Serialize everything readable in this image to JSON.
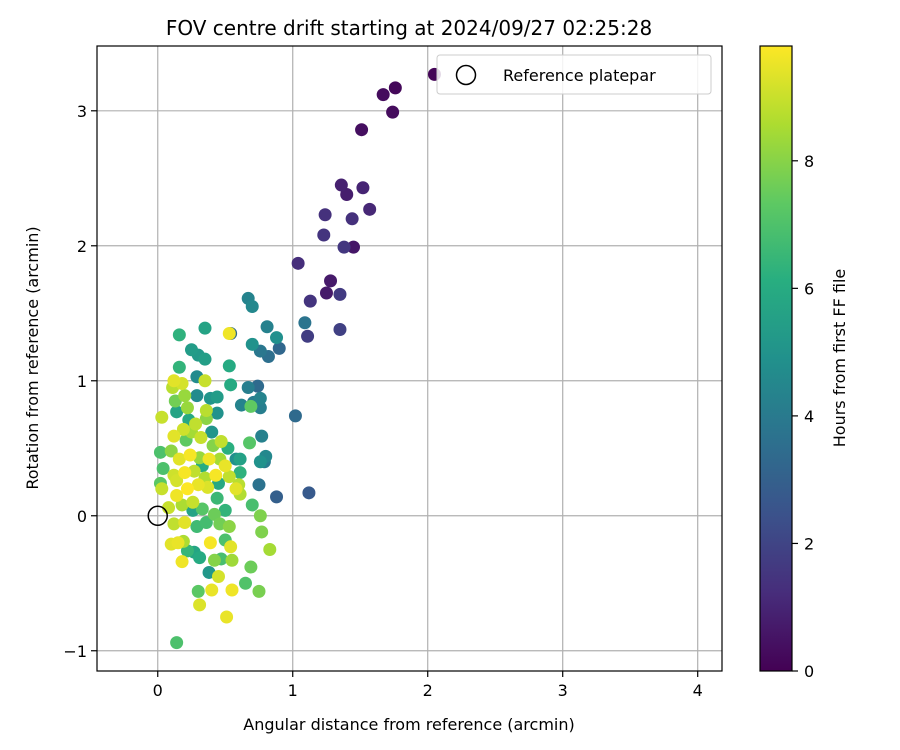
{
  "chart_data": {
    "type": "scatter",
    "title": "FOV centre drift starting at 2024/09/27 02:25:28",
    "xlabel": "Angular distance from reference (arcmin)",
    "ylabel": "Rotation from reference (arcmin)",
    "xlim": [
      -0.45,
      4.18
    ],
    "ylim": [
      -1.15,
      3.48
    ],
    "xticks": [
      0,
      1,
      2,
      3,
      4
    ],
    "yticks": [
      -1,
      0,
      1,
      2,
      3
    ],
    "grid": true,
    "legend": {
      "placement": "top-right",
      "entries": [
        "Reference platepar"
      ]
    },
    "reference_point": {
      "x": 0,
      "y": 0,
      "label": "Reference platepar"
    },
    "colorbar": {
      "label": "Hours from first FF file",
      "colormap": "viridis",
      "range": [
        0,
        9.8
      ],
      "ticks": [
        0,
        2,
        4,
        6,
        8
      ]
    },
    "points": [
      {
        "x": 2.05,
        "y": 3.27,
        "c": 0.1
      },
      {
        "x": 1.76,
        "y": 3.17,
        "c": 0.2
      },
      {
        "x": 1.67,
        "y": 3.12,
        "c": 0.3
      },
      {
        "x": 1.74,
        "y": 2.99,
        "c": 0.3
      },
      {
        "x": 1.51,
        "y": 2.86,
        "c": 0.4
      },
      {
        "x": 1.36,
        "y": 2.45,
        "c": 0.9
      },
      {
        "x": 1.52,
        "y": 2.43,
        "c": 1.0
      },
      {
        "x": 1.4,
        "y": 2.38,
        "c": 0.8
      },
      {
        "x": 1.57,
        "y": 2.27,
        "c": 1.1
      },
      {
        "x": 1.24,
        "y": 2.23,
        "c": 1.4
      },
      {
        "x": 1.44,
        "y": 2.2,
        "c": 1.4
      },
      {
        "x": 1.23,
        "y": 2.08,
        "c": 1.5
      },
      {
        "x": 1.38,
        "y": 1.99,
        "c": 1.6
      },
      {
        "x": 1.45,
        "y": 1.99,
        "c": 0.6
      },
      {
        "x": 1.04,
        "y": 1.87,
        "c": 1.3
      },
      {
        "x": 1.28,
        "y": 1.74,
        "c": 0.7
      },
      {
        "x": 1.25,
        "y": 1.65,
        "c": 0.7
      },
      {
        "x": 1.35,
        "y": 1.64,
        "c": 1.7
      },
      {
        "x": 1.13,
        "y": 1.59,
        "c": 1.5
      },
      {
        "x": 1.09,
        "y": 1.43,
        "c": 3.8
      },
      {
        "x": 1.35,
        "y": 1.38,
        "c": 1.9
      },
      {
        "x": 1.11,
        "y": 1.33,
        "c": 1.8
      },
      {
        "x": 0.67,
        "y": 1.61,
        "c": 4.4
      },
      {
        "x": 0.7,
        "y": 1.55,
        "c": 4.6
      },
      {
        "x": 0.81,
        "y": 1.4,
        "c": 4.3
      },
      {
        "x": 0.54,
        "y": 1.35,
        "c": 3.4
      },
      {
        "x": 0.88,
        "y": 1.32,
        "c": 4.9
      },
      {
        "x": 0.7,
        "y": 1.27,
        "c": 5.0
      },
      {
        "x": 0.76,
        "y": 1.22,
        "c": 3.9
      },
      {
        "x": 0.82,
        "y": 1.18,
        "c": 3.6
      },
      {
        "x": 0.9,
        "y": 1.24,
        "c": 3.3
      },
      {
        "x": 0.74,
        "y": 0.96,
        "c": 3.4
      },
      {
        "x": 0.67,
        "y": 0.95,
        "c": 4.2
      },
      {
        "x": 0.76,
        "y": 0.87,
        "c": 4.4
      },
      {
        "x": 0.71,
        "y": 0.84,
        "c": 4.1
      },
      {
        "x": 0.76,
        "y": 0.8,
        "c": 4.2
      },
      {
        "x": 0.69,
        "y": 0.81,
        "c": 7.4
      },
      {
        "x": 0.62,
        "y": 0.82,
        "c": 4.4
      },
      {
        "x": 0.77,
        "y": 0.59,
        "c": 4.3
      },
      {
        "x": 0.68,
        "y": 0.54,
        "c": 7.2
      },
      {
        "x": 1.02,
        "y": 0.74,
        "c": 3.4
      },
      {
        "x": 0.8,
        "y": 0.44,
        "c": 4.6
      },
      {
        "x": 0.79,
        "y": 0.4,
        "c": 4.1
      },
      {
        "x": 0.76,
        "y": 0.4,
        "c": 5.0
      },
      {
        "x": 0.58,
        "y": 0.42,
        "c": 4.9
      },
      {
        "x": 0.75,
        "y": 0.23,
        "c": 3.7
      },
      {
        "x": 0.88,
        "y": 0.14,
        "c": 3.0
      },
      {
        "x": 1.12,
        "y": 0.17,
        "c": 2.8
      },
      {
        "x": 0.7,
        "y": 0.08,
        "c": 6.9
      },
      {
        "x": 0.76,
        "y": 0.0,
        "c": 7.9
      },
      {
        "x": 0.77,
        "y": -0.12,
        "c": 7.9
      },
      {
        "x": 0.83,
        "y": -0.25,
        "c": 8.5
      },
      {
        "x": 0.69,
        "y": -0.38,
        "c": 7.6
      },
      {
        "x": 0.65,
        "y": -0.5,
        "c": 7.1
      },
      {
        "x": 0.75,
        "y": -0.56,
        "c": 7.8
      },
      {
        "x": 0.14,
        "y": -0.94,
        "c": 7.0
      },
      {
        "x": 0.51,
        "y": -0.75,
        "c": 9.5
      },
      {
        "x": 0.31,
        "y": -0.66,
        "c": 9.3
      },
      {
        "x": 0.55,
        "y": -0.55,
        "c": 9.6
      },
      {
        "x": 0.4,
        "y": -0.55,
        "c": 9.5
      },
      {
        "x": 0.3,
        "y": -0.56,
        "c": 7.3
      },
      {
        "x": 0.45,
        "y": -0.45,
        "c": 9.2
      },
      {
        "x": 0.38,
        "y": -0.42,
        "c": 5.2
      },
      {
        "x": 0.55,
        "y": -0.33,
        "c": 8.4
      },
      {
        "x": 0.42,
        "y": -0.33,
        "c": 8.0
      },
      {
        "x": 0.47,
        "y": -0.32,
        "c": 6.9
      },
      {
        "x": 0.18,
        "y": -0.34,
        "c": 9.6
      },
      {
        "x": 0.54,
        "y": -0.23,
        "c": 9.4
      },
      {
        "x": 0.39,
        "y": -0.2,
        "c": 9.7
      },
      {
        "x": 0.22,
        "y": -0.26,
        "c": 6.5
      },
      {
        "x": 0.31,
        "y": -0.31,
        "c": 6.0
      },
      {
        "x": 0.27,
        "y": -0.27,
        "c": 5.8
      },
      {
        "x": 0.15,
        "y": -0.2,
        "c": 9.5
      },
      {
        "x": 0.1,
        "y": -0.21,
        "c": 9.4
      },
      {
        "x": 0.19,
        "y": -0.19,
        "c": 8.6
      },
      {
        "x": 0.53,
        "y": -0.08,
        "c": 8.1
      },
      {
        "x": 0.46,
        "y": -0.06,
        "c": 7.7
      },
      {
        "x": 0.36,
        "y": -0.05,
        "c": 6.8
      },
      {
        "x": 0.29,
        "y": -0.08,
        "c": 6.7
      },
      {
        "x": 0.2,
        "y": -0.05,
        "c": 9.4
      },
      {
        "x": 0.12,
        "y": -0.06,
        "c": 8.9
      },
      {
        "x": 0.42,
        "y": 0.01,
        "c": 7.6
      },
      {
        "x": 0.5,
        "y": 0.04,
        "c": 6.4
      },
      {
        "x": 0.33,
        "y": 0.05,
        "c": 7.2
      },
      {
        "x": 0.26,
        "y": 0.04,
        "c": 5.7
      },
      {
        "x": 0.18,
        "y": 0.08,
        "c": 8.6
      },
      {
        "x": 0.08,
        "y": 0.06,
        "c": 9.0
      },
      {
        "x": 0.58,
        "y": 0.2,
        "c": 9.4
      },
      {
        "x": 0.6,
        "y": 0.23,
        "c": 8.8
      },
      {
        "x": 0.61,
        "y": 0.16,
        "c": 8.7
      },
      {
        "x": 0.53,
        "y": 0.29,
        "c": 8.9
      },
      {
        "x": 0.44,
        "y": 0.13,
        "c": 6.6
      },
      {
        "x": 0.37,
        "y": 0.21,
        "c": 9.3
      },
      {
        "x": 0.3,
        "y": 0.23,
        "c": 9.5
      },
      {
        "x": 0.22,
        "y": 0.2,
        "c": 9.8
      },
      {
        "x": 0.14,
        "y": 0.15,
        "c": 9.6
      },
      {
        "x": 0.03,
        "y": 0.2,
        "c": 9.0
      },
      {
        "x": 0.02,
        "y": 0.24,
        "c": 7.3
      },
      {
        "x": 0.61,
        "y": 0.32,
        "c": 6.3
      },
      {
        "x": 0.5,
        "y": 0.37,
        "c": 9.5
      },
      {
        "x": 0.43,
        "y": 0.3,
        "c": 9.7
      },
      {
        "x": 0.35,
        "y": 0.28,
        "c": 8.7
      },
      {
        "x": 0.27,
        "y": 0.33,
        "c": 8.9
      },
      {
        "x": 0.2,
        "y": 0.32,
        "c": 9.7
      },
      {
        "x": 0.12,
        "y": 0.3,
        "c": 9.1
      },
      {
        "x": 0.04,
        "y": 0.35,
        "c": 7.0
      },
      {
        "x": 0.52,
        "y": 0.5,
        "c": 6.2
      },
      {
        "x": 0.46,
        "y": 0.42,
        "c": 8.5
      },
      {
        "x": 0.38,
        "y": 0.42,
        "c": 9.6
      },
      {
        "x": 0.31,
        "y": 0.43,
        "c": 8.3
      },
      {
        "x": 0.24,
        "y": 0.45,
        "c": 9.7
      },
      {
        "x": 0.16,
        "y": 0.42,
        "c": 9.4
      },
      {
        "x": 0.1,
        "y": 0.48,
        "c": 8.1
      },
      {
        "x": 0.02,
        "y": 0.47,
        "c": 7.0
      },
      {
        "x": 0.47,
        "y": 0.55,
        "c": 8.9
      },
      {
        "x": 0.4,
        "y": 0.62,
        "c": 5.1
      },
      {
        "x": 0.32,
        "y": 0.58,
        "c": 9.0
      },
      {
        "x": 0.25,
        "y": 0.62,
        "c": 8.5
      },
      {
        "x": 0.19,
        "y": 0.64,
        "c": 9.1
      },
      {
        "x": 0.12,
        "y": 0.59,
        "c": 9.4
      },
      {
        "x": 0.44,
        "y": 0.76,
        "c": 5.0
      },
      {
        "x": 0.36,
        "y": 0.78,
        "c": 8.8
      },
      {
        "x": 0.28,
        "y": 0.68,
        "c": 8.9
      },
      {
        "x": 0.22,
        "y": 0.8,
        "c": 8.3
      },
      {
        "x": 0.14,
        "y": 0.77,
        "c": 5.7
      },
      {
        "x": 0.03,
        "y": 0.73,
        "c": 9.0
      },
      {
        "x": 0.44,
        "y": 0.88,
        "c": 5.4
      },
      {
        "x": 0.39,
        "y": 0.87,
        "c": 5.1
      },
      {
        "x": 0.29,
        "y": 0.89,
        "c": 4.7
      },
      {
        "x": 0.2,
        "y": 0.89,
        "c": 8.3
      },
      {
        "x": 0.13,
        "y": 0.85,
        "c": 7.7
      },
      {
        "x": 0.54,
        "y": 0.97,
        "c": 6.0
      },
      {
        "x": 0.35,
        "y": 1.0,
        "c": 9.0
      },
      {
        "x": 0.29,
        "y": 1.03,
        "c": 4.7
      },
      {
        "x": 0.18,
        "y": 0.98,
        "c": 9.2
      },
      {
        "x": 0.11,
        "y": 0.95,
        "c": 8.8
      },
      {
        "x": 0.12,
        "y": 1.0,
        "c": 9.4
      },
      {
        "x": 0.16,
        "y": 1.1,
        "c": 6.4
      },
      {
        "x": 0.53,
        "y": 1.11,
        "c": 6.0
      },
      {
        "x": 0.35,
        "y": 1.16,
        "c": 5.5
      },
      {
        "x": 0.3,
        "y": 1.19,
        "c": 5.3
      },
      {
        "x": 0.25,
        "y": 1.23,
        "c": 5.4
      },
      {
        "x": 0.16,
        "y": 1.34,
        "c": 6.3
      },
      {
        "x": 0.35,
        "y": 1.39,
        "c": 5.7
      },
      {
        "x": 0.53,
        "y": 1.35,
        "c": 9.6
      },
      {
        "x": 0.61,
        "y": 0.42,
        "c": 5.6
      },
      {
        "x": 0.33,
        "y": 0.37,
        "c": 6.1
      },
      {
        "x": 0.41,
        "y": 0.52,
        "c": 8.0
      },
      {
        "x": 0.21,
        "y": 0.56,
        "c": 7.4
      },
      {
        "x": 0.26,
        "y": 0.1,
        "c": 9.0
      },
      {
        "x": 0.45,
        "y": 0.24,
        "c": 5.9
      },
      {
        "x": 0.14,
        "y": 0.26,
        "c": 9.2
      },
      {
        "x": 0.36,
        "y": 0.72,
        "c": 8.1
      },
      {
        "x": 0.5,
        "y": -0.18,
        "c": 7.0
      },
      {
        "x": 0.23,
        "y": 0.71,
        "c": 5.9
      }
    ]
  }
}
